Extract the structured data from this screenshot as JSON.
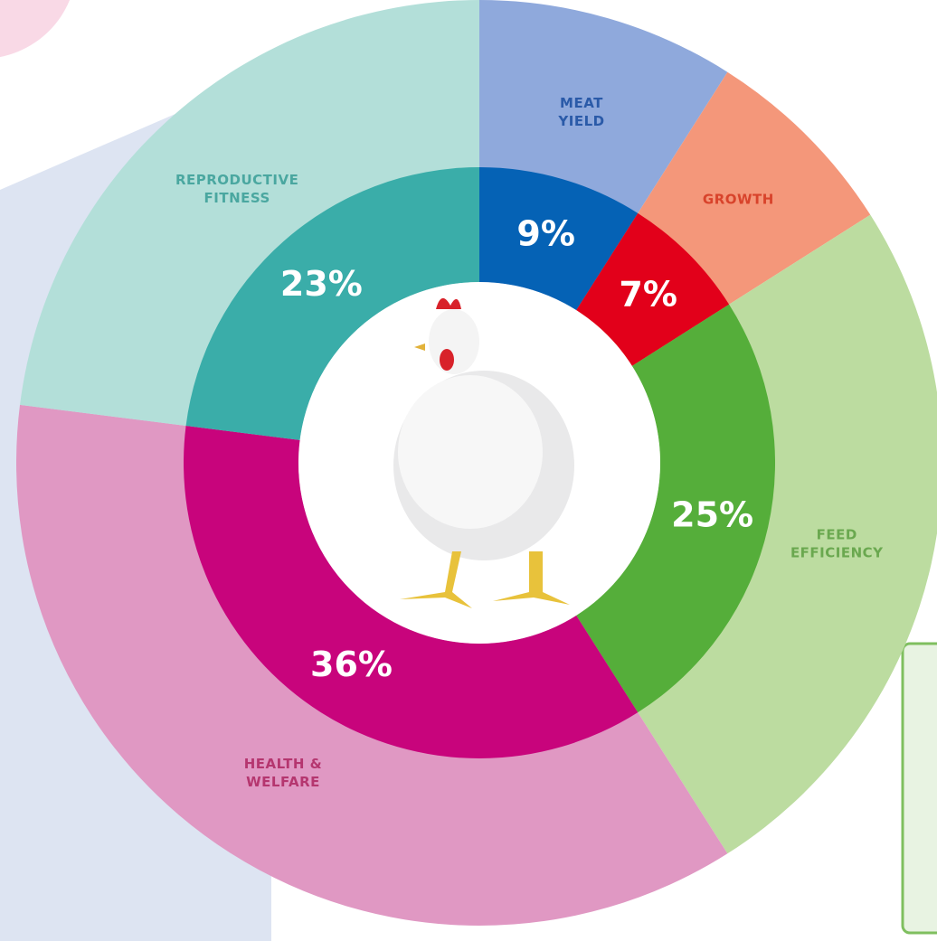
{
  "chart_data": {
    "type": "donut",
    "categories": [
      "MEAT YIELD",
      "GROWTH",
      "FEED EFFICIENCY",
      "HEALTH & WELFARE",
      "REPRODUCTIVE FITNESS"
    ],
    "values": [
      9,
      7,
      25,
      36,
      23
    ],
    "value_labels": [
      "9%",
      "7%",
      "25%",
      "36%",
      "23%"
    ],
    "colors": [
      "#0562b5",
      "#e2001a",
      "#55ae3a",
      "#c8047c",
      "#3aada9"
    ],
    "outer_colors": [
      "#8fa9dc",
      "#f4977a",
      "#bcdca0",
      "#e098c3",
      "#b3dfd9"
    ],
    "label_colors": [
      "#2a5aa8",
      "#d8432b",
      "#6aa84f",
      "#b5366f",
      "#4aa7a0"
    ]
  }
}
